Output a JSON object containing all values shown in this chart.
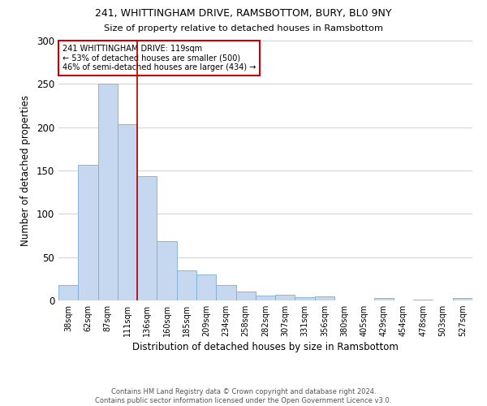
{
  "title1": "241, WHITTINGHAM DRIVE, RAMSBOTTOM, BURY, BL0 9NY",
  "title2": "Size of property relative to detached houses in Ramsbottom",
  "xlabel": "Distribution of detached houses by size in Ramsbottom",
  "ylabel": "Number of detached properties",
  "footnote1": "Contains HM Land Registry data © Crown copyright and database right 2024.",
  "footnote2": "Contains public sector information licensed under the Open Government Licence v3.0.",
  "annotation_line1": "241 WHITTINGHAM DRIVE: 119sqm",
  "annotation_line2": "← 53% of detached houses are smaller (500)",
  "annotation_line3": "46% of semi-detached houses are larger (434) →",
  "bar_labels": [
    "38sqm",
    "62sqm",
    "87sqm",
    "111sqm",
    "136sqm",
    "160sqm",
    "185sqm",
    "209sqm",
    "234sqm",
    "258sqm",
    "282sqm",
    "307sqm",
    "331sqm",
    "356sqm",
    "380sqm",
    "405sqm",
    "429sqm",
    "454sqm",
    "478sqm",
    "503sqm",
    "527sqm"
  ],
  "bar_values": [
    18,
    157,
    250,
    203,
    143,
    68,
    35,
    30,
    18,
    10,
    6,
    7,
    4,
    5,
    0,
    0,
    3,
    0,
    1,
    0,
    3
  ],
  "bar_color": "#c5d8f0",
  "bar_edge_color": "#7bafd4",
  "vline_color": "#aa0000",
  "annotation_box_color": "#ffffff",
  "annotation_box_edge": "#cc0000",
  "ylim": [
    0,
    300
  ],
  "yticks": [
    0,
    50,
    100,
    150,
    200,
    250,
    300
  ],
  "background_color": "#ffffff",
  "grid_color": "#d0d0d0",
  "vline_pos": 3.5
}
